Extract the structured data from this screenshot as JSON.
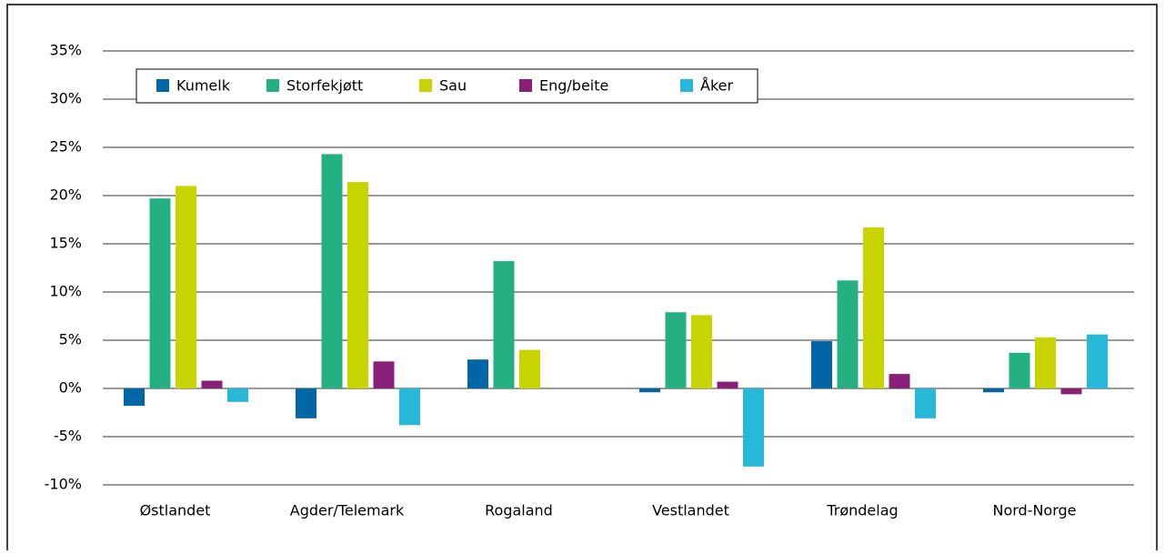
{
  "chart_data": {
    "type": "bar",
    "categories": [
      "Østlandet",
      "Agder/Telemark",
      "Rogaland",
      "Vestlandet",
      "Trøndelag",
      "Nord-Norge"
    ],
    "series": [
      {
        "name": "Kumelk",
        "color": "#0066a6",
        "values": [
          -1.8,
          -3.1,
          3.0,
          -0.4,
          4.9,
          -0.4
        ]
      },
      {
        "name": "Storfekjøtt",
        "color": "#24b083",
        "values": [
          19.7,
          24.3,
          13.2,
          7.9,
          11.2,
          3.7
        ]
      },
      {
        "name": "Sau",
        "color": "#c8d400",
        "values": [
          21.0,
          21.4,
          4.0,
          7.6,
          16.7,
          5.3
        ]
      },
      {
        "name": "Eng/beite",
        "color": "#8a1f7a",
        "values": [
          0.8,
          2.8,
          0,
          0.7,
          1.5,
          -0.6
        ]
      },
      {
        "name": "Åker",
        "color": "#26b8d9",
        "values": [
          -1.4,
          -3.8,
          0,
          -8.1,
          -3.1,
          5.6
        ]
      }
    ],
    "ylim": [
      -10,
      35
    ],
    "yticks": [
      {
        "value": -10,
        "label": "-10%"
      },
      {
        "value": -5,
        "label": "-5%"
      },
      {
        "value": 0,
        "label": "0%"
      },
      {
        "value": 5,
        "label": "5%"
      },
      {
        "value": 10,
        "label": "10%"
      },
      {
        "value": 15,
        "label": "15%"
      },
      {
        "value": 20,
        "label": "20%"
      },
      {
        "value": 25,
        "label": "25%"
      },
      {
        "value": 30,
        "label": "30%"
      },
      {
        "value": 35,
        "label": "35%"
      }
    ],
    "grid": true,
    "legend": "top-left"
  }
}
